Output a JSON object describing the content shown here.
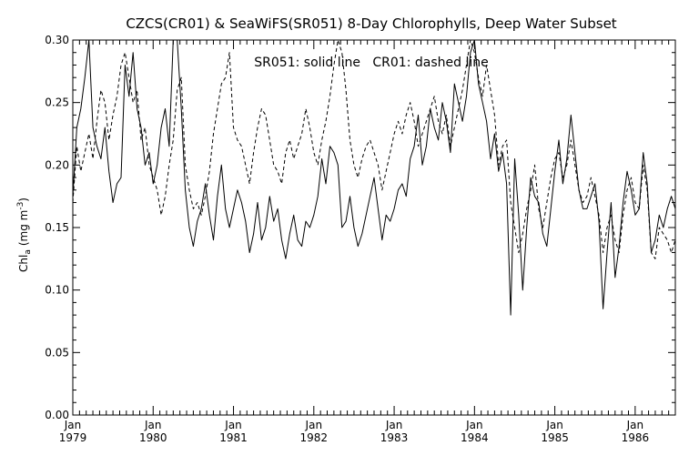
{
  "chart_data": {
    "type": "line",
    "title": "CZCS(CR01) & SeaWiFS(SR051) 8-Day Chlorophylls, Deep Water Subset",
    "annotation": "SR051: solid line   CR01: dashed line",
    "ylabel": "Chl",
    "ylabel_sub": "a",
    "ylabel_units_open": "(mg m",
    "ylabel_units_sup": "-3",
    "ylabel_units_close": ")",
    "ylim": [
      0.0,
      0.3
    ],
    "xlim": [
      1979.0,
      1986.5
    ],
    "yticks": [
      "0.00",
      "0.05",
      "0.10",
      "0.15",
      "0.20",
      "0.25",
      "0.30"
    ],
    "xticks": [
      {
        "month": "Jan",
        "year": "1979"
      },
      {
        "month": "Jan",
        "year": "1980"
      },
      {
        "month": "Jan",
        "year": "1981"
      },
      {
        "month": "Jan",
        "year": "1982"
      },
      {
        "month": "Jan",
        "year": "1983"
      },
      {
        "month": "Jan",
        "year": "1984"
      },
      {
        "month": "Jan",
        "year": "1985"
      },
      {
        "month": "Jan",
        "year": "1986"
      }
    ],
    "grid": false,
    "series": [
      {
        "name": "SR051",
        "style": "solid",
        "x": [
          1979.0,
          1979.05,
          1979.1,
          1979.15,
          1979.2,
          1979.25,
          1979.3,
          1979.35,
          1979.4,
          1979.45,
          1979.5,
          1979.55,
          1979.6,
          1979.65,
          1979.7,
          1979.75,
          1979.8,
          1979.85,
          1979.9,
          1979.95,
          1980.0,
          1980.05,
          1980.1,
          1980.15,
          1980.2,
          1980.25,
          1980.3,
          1980.35,
          1980.4,
          1980.45,
          1980.5,
          1980.55,
          1980.6,
          1980.65,
          1980.7,
          1980.75,
          1980.8,
          1980.85,
          1980.9,
          1980.95,
          1981.0,
          1981.05,
          1981.1,
          1981.15,
          1981.2,
          1981.25,
          1981.3,
          1981.35,
          1981.4,
          1981.45,
          1981.5,
          1981.55,
          1981.6,
          1981.65,
          1981.7,
          1981.75,
          1981.8,
          1981.85,
          1981.9,
          1981.95,
          1982.0,
          1982.05,
          1982.1,
          1982.15,
          1982.2,
          1982.25,
          1982.3,
          1982.35,
          1982.4,
          1982.45,
          1982.5,
          1982.55,
          1982.6,
          1982.65,
          1982.7,
          1982.75,
          1982.8,
          1982.85,
          1982.9,
          1982.95,
          1983.0,
          1983.05,
          1983.1,
          1983.15,
          1983.2,
          1983.25,
          1983.3,
          1983.35,
          1983.4,
          1983.45,
          1983.5,
          1983.55,
          1983.6,
          1983.65,
          1983.7,
          1983.75,
          1983.8,
          1983.85,
          1983.9,
          1983.95,
          1984.0,
          1984.05,
          1984.1,
          1984.15,
          1984.2,
          1984.25,
          1984.3,
          1984.35,
          1984.4,
          1984.45,
          1984.5,
          1984.55,
          1984.6,
          1984.65,
          1984.7,
          1984.75,
          1984.8,
          1984.85,
          1984.9,
          1984.95,
          1985.0,
          1985.05,
          1985.1,
          1985.15,
          1985.2,
          1985.25,
          1985.3,
          1985.35,
          1985.4,
          1985.45,
          1985.5,
          1985.55,
          1985.6,
          1985.65,
          1985.7,
          1985.75,
          1985.8,
          1985.85,
          1985.9,
          1985.95,
          1986.0,
          1986.05,
          1986.1,
          1986.15,
          1986.2,
          1986.25,
          1986.3,
          1986.35,
          1986.4,
          1986.45,
          1986.5
        ],
        "y": [
          0.175,
          0.23,
          0.245,
          0.27,
          0.3,
          0.23,
          0.215,
          0.205,
          0.23,
          0.195,
          0.17,
          0.185,
          0.19,
          0.28,
          0.255,
          0.29,
          0.245,
          0.23,
          0.2,
          0.21,
          0.185,
          0.2,
          0.23,
          0.245,
          0.215,
          0.3,
          0.3,
          0.245,
          0.18,
          0.15,
          0.135,
          0.155,
          0.165,
          0.185,
          0.16,
          0.14,
          0.175,
          0.2,
          0.165,
          0.15,
          0.165,
          0.18,
          0.17,
          0.155,
          0.13,
          0.145,
          0.17,
          0.14,
          0.15,
          0.175,
          0.155,
          0.165,
          0.14,
          0.125,
          0.145,
          0.16,
          0.14,
          0.135,
          0.155,
          0.15,
          0.16,
          0.175,
          0.205,
          0.185,
          0.215,
          0.21,
          0.2,
          0.15,
          0.155,
          0.175,
          0.15,
          0.135,
          0.145,
          0.16,
          0.175,
          0.19,
          0.165,
          0.14,
          0.16,
          0.155,
          0.165,
          0.18,
          0.185,
          0.175,
          0.205,
          0.215,
          0.24,
          0.2,
          0.215,
          0.245,
          0.23,
          0.22,
          0.25,
          0.235,
          0.21,
          0.265,
          0.25,
          0.235,
          0.255,
          0.29,
          0.3,
          0.265,
          0.25,
          0.235,
          0.205,
          0.225,
          0.195,
          0.21,
          0.185,
          0.08,
          0.205,
          0.16,
          0.1,
          0.15,
          0.19,
          0.175,
          0.17,
          0.145,
          0.135,
          0.165,
          0.195,
          0.22,
          0.185,
          0.205,
          0.24,
          0.21,
          0.18,
          0.165,
          0.165,
          0.175,
          0.185,
          0.155,
          0.085,
          0.13,
          0.17,
          0.11,
          0.135,
          0.17,
          0.195,
          0.18,
          0.16,
          0.165,
          0.21,
          0.185,
          0.13,
          0.14,
          0.16,
          0.15,
          0.165,
          0.175,
          0.165
        ]
      },
      {
        "name": "CR01",
        "style": "dashed",
        "x": [
          1979.0,
          1979.05,
          1979.1,
          1979.15,
          1979.2,
          1979.25,
          1979.3,
          1979.35,
          1979.4,
          1979.45,
          1979.5,
          1979.55,
          1979.6,
          1979.65,
          1979.7,
          1979.75,
          1979.8,
          1979.85,
          1979.9,
          1979.95,
          1980.0,
          1980.05,
          1980.1,
          1980.15,
          1980.2,
          1980.25,
          1980.3,
          1980.35,
          1980.4,
          1980.45,
          1980.5,
          1980.55,
          1980.6,
          1980.65,
          1980.7,
          1980.75,
          1980.8,
          1980.85,
          1980.9,
          1980.95,
          1981.0,
          1981.05,
          1981.1,
          1981.15,
          1981.2,
          1981.25,
          1981.3,
          1981.35,
          1981.4,
          1981.45,
          1981.5,
          1981.55,
          1981.6,
          1981.65,
          1981.7,
          1981.75,
          1981.8,
          1981.85,
          1981.9,
          1981.95,
          1982.0,
          1982.05,
          1982.1,
          1982.15,
          1982.2,
          1982.25,
          1982.3,
          1982.35,
          1982.4,
          1982.45,
          1982.5,
          1982.55,
          1982.6,
          1982.65,
          1982.7,
          1982.75,
          1982.8,
          1982.85,
          1982.9,
          1982.95,
          1983.0,
          1983.05,
          1983.1,
          1983.15,
          1983.2,
          1983.25,
          1983.3,
          1983.35,
          1983.4,
          1983.45,
          1983.5,
          1983.55,
          1983.6,
          1983.65,
          1983.7,
          1983.75,
          1983.8,
          1983.85,
          1983.9,
          1983.95,
          1984.0,
          1984.05,
          1984.1,
          1984.15,
          1984.2,
          1984.25,
          1984.3,
          1984.35,
          1984.4,
          1984.45,
          1984.5,
          1984.55,
          1984.6,
          1984.65,
          1984.7,
          1984.75,
          1984.8,
          1984.85,
          1984.9,
          1984.95,
          1985.0,
          1985.05,
          1985.1,
          1985.15,
          1985.2,
          1985.25,
          1985.3,
          1985.35,
          1985.4,
          1985.45,
          1985.5,
          1985.55,
          1985.6,
          1985.65,
          1985.7,
          1985.75,
          1985.8,
          1985.85,
          1985.9,
          1985.95,
          1986.0,
          1986.05,
          1986.1,
          1986.15,
          1986.2,
          1986.25,
          1986.3,
          1986.35,
          1986.4,
          1986.45,
          1986.5
        ],
        "y": [
          0.17,
          0.215,
          0.195,
          0.21,
          0.225,
          0.205,
          0.235,
          0.26,
          0.25,
          0.22,
          0.24,
          0.255,
          0.28,
          0.29,
          0.27,
          0.25,
          0.26,
          0.22,
          0.23,
          0.2,
          0.19,
          0.18,
          0.16,
          0.175,
          0.2,
          0.22,
          0.26,
          0.27,
          0.2,
          0.18,
          0.165,
          0.17,
          0.16,
          0.175,
          0.195,
          0.225,
          0.245,
          0.265,
          0.27,
          0.29,
          0.23,
          0.22,
          0.215,
          0.2,
          0.185,
          0.21,
          0.23,
          0.245,
          0.24,
          0.22,
          0.2,
          0.195,
          0.185,
          0.21,
          0.22,
          0.205,
          0.215,
          0.225,
          0.245,
          0.23,
          0.21,
          0.2,
          0.22,
          0.235,
          0.255,
          0.28,
          0.3,
          0.29,
          0.26,
          0.22,
          0.2,
          0.19,
          0.205,
          0.215,
          0.22,
          0.21,
          0.2,
          0.18,
          0.195,
          0.21,
          0.225,
          0.235,
          0.225,
          0.24,
          0.25,
          0.235,
          0.215,
          0.225,
          0.235,
          0.245,
          0.255,
          0.235,
          0.225,
          0.24,
          0.215,
          0.23,
          0.245,
          0.26,
          0.28,
          0.3,
          0.29,
          0.27,
          0.255,
          0.28,
          0.26,
          0.24,
          0.2,
          0.215,
          0.22,
          0.17,
          0.15,
          0.13,
          0.145,
          0.165,
          0.18,
          0.2,
          0.165,
          0.15,
          0.17,
          0.19,
          0.205,
          0.21,
          0.19,
          0.2,
          0.22,
          0.2,
          0.18,
          0.17,
          0.175,
          0.19,
          0.175,
          0.16,
          0.13,
          0.15,
          0.16,
          0.14,
          0.13,
          0.16,
          0.18,
          0.19,
          0.17,
          0.165,
          0.2,
          0.18,
          0.13,
          0.125,
          0.15,
          0.145,
          0.14,
          0.13,
          0.14
        ]
      }
    ]
  }
}
